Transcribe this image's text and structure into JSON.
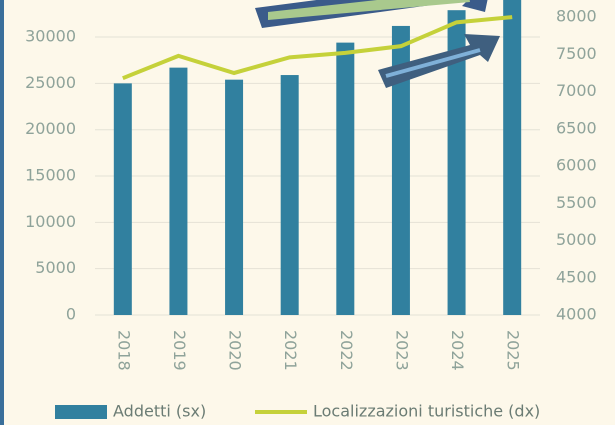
{
  "chart_data": {
    "type": "bar-line",
    "categories": [
      "2018",
      "2019",
      "2020",
      "2021",
      "2022",
      "2023",
      "2024",
      "2025"
    ],
    "series": [
      {
        "name": "Addetti (sx)",
        "type": "bar",
        "color": "#31809f",
        "values": [
          25000,
          26700,
          25400,
          25900,
          29400,
          31200,
          32900,
          34000
        ]
      },
      {
        "name": "Localizzazioni turistiche (dx)",
        "type": "line",
        "axis": "y2",
        "color": "#c5d13a",
        "values": [
          7180,
          7480,
          7250,
          7460,
          7520,
          7610,
          7930,
          8000
        ]
      }
    ],
    "ylim": [
      0,
      34000
    ],
    "yticks": [
      0,
      5000,
      10000,
      15000,
      20000,
      25000,
      30000
    ],
    "y2lim": [
      4000,
      8230
    ],
    "y2ticks": [
      4000,
      4500,
      5000,
      5500,
      6000,
      6500,
      7000,
      7500,
      8000
    ],
    "grid": true,
    "legend": "bottom"
  }
}
